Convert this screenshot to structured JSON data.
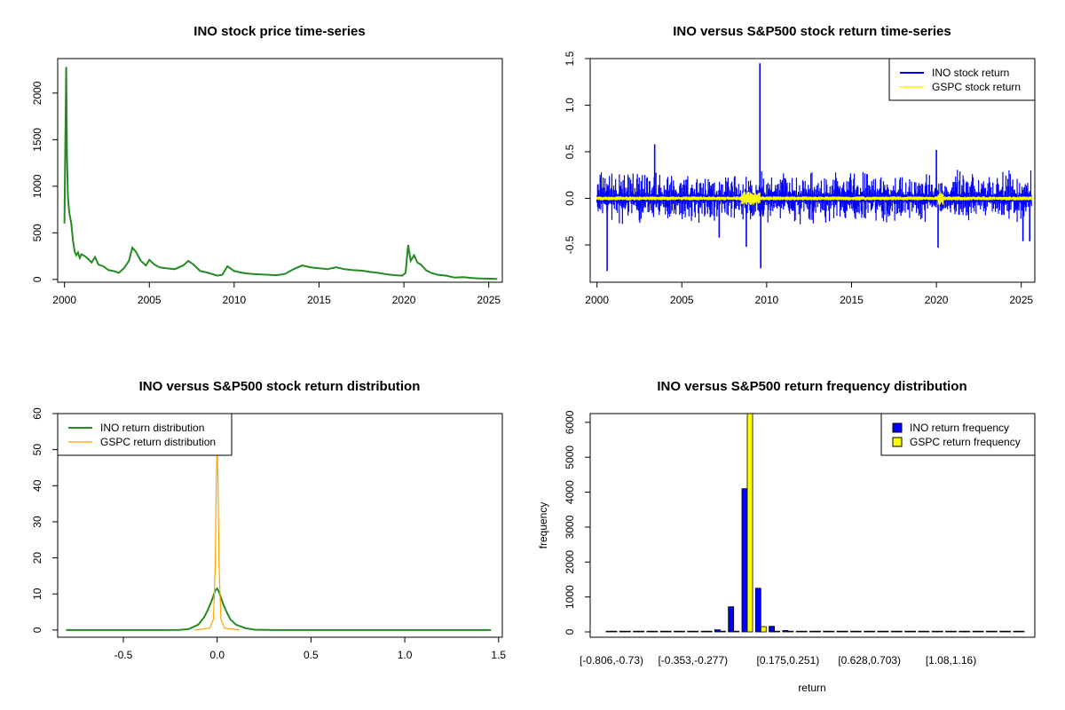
{
  "chart_data": [
    {
      "id": "price",
      "type": "line",
      "title": "INO stock price time-series",
      "xlabel": "",
      "ylabel": "",
      "xlim": [
        1999.6,
        2025.8
      ],
      "ylim": [
        -30,
        2370
      ],
      "xticks": [
        "2000",
        "2005",
        "2010",
        "2015",
        "2020",
        "2025"
      ],
      "yticks": [
        "0",
        "500",
        "1000",
        "1500",
        "2000"
      ],
      "color": "#228B22",
      "series": [
        {
          "x": [
            2000.0,
            2000.05,
            2000.1,
            2000.15,
            2000.2,
            2000.25,
            2000.3,
            2000.4,
            2000.5,
            2000.6,
            2000.7,
            2000.8,
            2000.9,
            2001.0,
            2001.2,
            2001.4,
            2001.6,
            2001.8,
            2002.0,
            2002.3,
            2002.6,
            2002.9,
            2003.2,
            2003.5,
            2003.8,
            2004.0,
            2004.2,
            2004.5,
            2004.8,
            2005.0,
            2005.3,
            2005.6,
            2006.0,
            2006.5,
            2007.0,
            2007.3,
            2007.6,
            2008.0,
            2008.5,
            2009.0,
            2009.3,
            2009.6,
            2010.0,
            2010.5,
            2011.0,
            2012.0,
            2012.5,
            2013.0,
            2013.5,
            2014.0,
            2014.5,
            2015.0,
            2015.5,
            2016.0,
            2016.5,
            2017.0,
            2017.5,
            2018.0,
            2018.5,
            2019.0,
            2019.5,
            2019.9,
            2020.1,
            2020.25,
            2020.4,
            2020.6,
            2020.8,
            2021.0,
            2021.3,
            2021.6,
            2022.0,
            2022.5,
            2023.0,
            2023.5,
            2024.0,
            2024.5,
            2025.0,
            2025.5
          ],
          "y": [
            600,
            1450,
            2280,
            1300,
            900,
            780,
            700,
            600,
            420,
            300,
            260,
            290,
            230,
            270,
            250,
            220,
            180,
            240,
            160,
            140,
            100,
            90,
            70,
            120,
            200,
            340,
            300,
            200,
            150,
            210,
            160,
            130,
            120,
            110,
            150,
            200,
            160,
            90,
            70,
            40,
            50,
            140,
            90,
            70,
            60,
            50,
            45,
            60,
            110,
            150,
            130,
            120,
            110,
            130,
            110,
            100,
            95,
            80,
            70,
            55,
            45,
            40,
            70,
            370,
            200,
            260,
            180,
            160,
            100,
            70,
            50,
            40,
            20,
            25,
            15,
            10,
            8,
            6
          ]
        }
      ]
    },
    {
      "id": "returns",
      "type": "line",
      "title": "INO versus S&P500 stock return time-series",
      "xlabel": "",
      "ylabel": "",
      "xlim": [
        1999.6,
        2025.8
      ],
      "ylim": [
        -0.9,
        1.5
      ],
      "xticks": [
        "2000",
        "2005",
        "2010",
        "2015",
        "2020",
        "2025"
      ],
      "yticks": [
        "-0.5",
        "0.0",
        "0.5",
        "1.0",
        "1.5"
      ],
      "legend": {
        "position": "top-right"
      },
      "series": [
        {
          "name": "INO stock return",
          "color": "#0000FF",
          "spikes": [
            [
              2000.6,
              -0.78
            ],
            [
              2003.4,
              0.58
            ],
            [
              2009.6,
              1.45
            ],
            [
              2009.65,
              -0.75
            ],
            [
              2008.8,
              -0.52
            ],
            [
              2020.1,
              -0.53
            ],
            [
              2020.0,
              0.52
            ],
            [
              2025.1,
              -0.46
            ],
            [
              2025.5,
              -0.46
            ],
            [
              2007.2,
              -0.42
            ]
          ]
        },
        {
          "name": "GSPC stock return",
          "color": "#FFFF00"
        }
      ]
    },
    {
      "id": "density",
      "type": "line",
      "title": "INO versus S&P500 stock return distribution",
      "xlabel": "",
      "ylabel": "",
      "xlim": [
        -0.85,
        1.52
      ],
      "ylim": [
        -2,
        60
      ],
      "xticks": [
        "-0.5",
        "0.0",
        "0.5",
        "1.0",
        "1.5"
      ],
      "yticks": [
        "0",
        "10",
        "20",
        "30",
        "40",
        "50",
        "60"
      ],
      "legend": {
        "position": "top-left"
      },
      "series": [
        {
          "name": "INO return distribution",
          "color": "#228B22",
          "x": [
            -0.806,
            -0.3,
            -0.2,
            -0.15,
            -0.1,
            -0.07,
            -0.05,
            -0.03,
            -0.01,
            0.0,
            0.01,
            0.03,
            0.05,
            0.07,
            0.1,
            0.15,
            0.2,
            0.3,
            1.46
          ],
          "y": [
            0,
            0,
            0.05,
            0.3,
            1.5,
            3.5,
            5.5,
            8,
            11,
            11.5,
            10.5,
            7.5,
            5,
            3,
            1.5,
            0.5,
            0.1,
            0,
            0
          ]
        },
        {
          "name": "GSPC return distribution",
          "color": "#FFA500",
          "x": [
            -0.12,
            -0.04,
            -0.02,
            -0.01,
            -0.005,
            0.0,
            0.005,
            0.01,
            0.02,
            0.04,
            0.12
          ],
          "y": [
            0,
            0.5,
            3,
            18,
            40,
            52,
            40,
            18,
            3,
            0.5,
            0
          ]
        }
      ]
    },
    {
      "id": "freq",
      "type": "bar",
      "title": "INO versus S&P500 return frequency distribution",
      "xlabel": "return",
      "ylabel": "frequency",
      "ylim": [
        0,
        6200
      ],
      "yticks": [
        "0",
        "1000",
        "2000",
        "3000",
        "4000",
        "5000",
        "6000"
      ],
      "tick_labels": [
        {
          "label": "[-0.806,-0.73)",
          "index": 0
        },
        {
          "label": "[-0.353,-0.277)",
          "index": 6
        },
        {
          "label": "[0.175,0.251)",
          "index": 13
        },
        {
          "label": "[0.628,0.703)",
          "index": 19
        },
        {
          "label": "[1.08,1.16)",
          "index": 25
        }
      ],
      "legend": {
        "position": "top-right"
      },
      "series": [
        {
          "name": "INO return frequency",
          "color": "#0000FF",
          "values": [
            3,
            2,
            2,
            3,
            4,
            6,
            10,
            20,
            60,
            720,
            4100,
            1250,
            160,
            40,
            15,
            8,
            5,
            3,
            2,
            2,
            1,
            1,
            1,
            1,
            1,
            1,
            1,
            1,
            1,
            1,
            1
          ]
        },
        {
          "name": "GSPC return frequency",
          "color": "#FFFF00",
          "values": [
            0,
            0,
            0,
            0,
            0,
            0,
            0,
            0,
            0,
            5,
            6250,
            150,
            0,
            0,
            0,
            0,
            0,
            0,
            0,
            0,
            0,
            0,
            0,
            0,
            0,
            0,
            0,
            0,
            0,
            0,
            0
          ]
        }
      ]
    }
  ]
}
